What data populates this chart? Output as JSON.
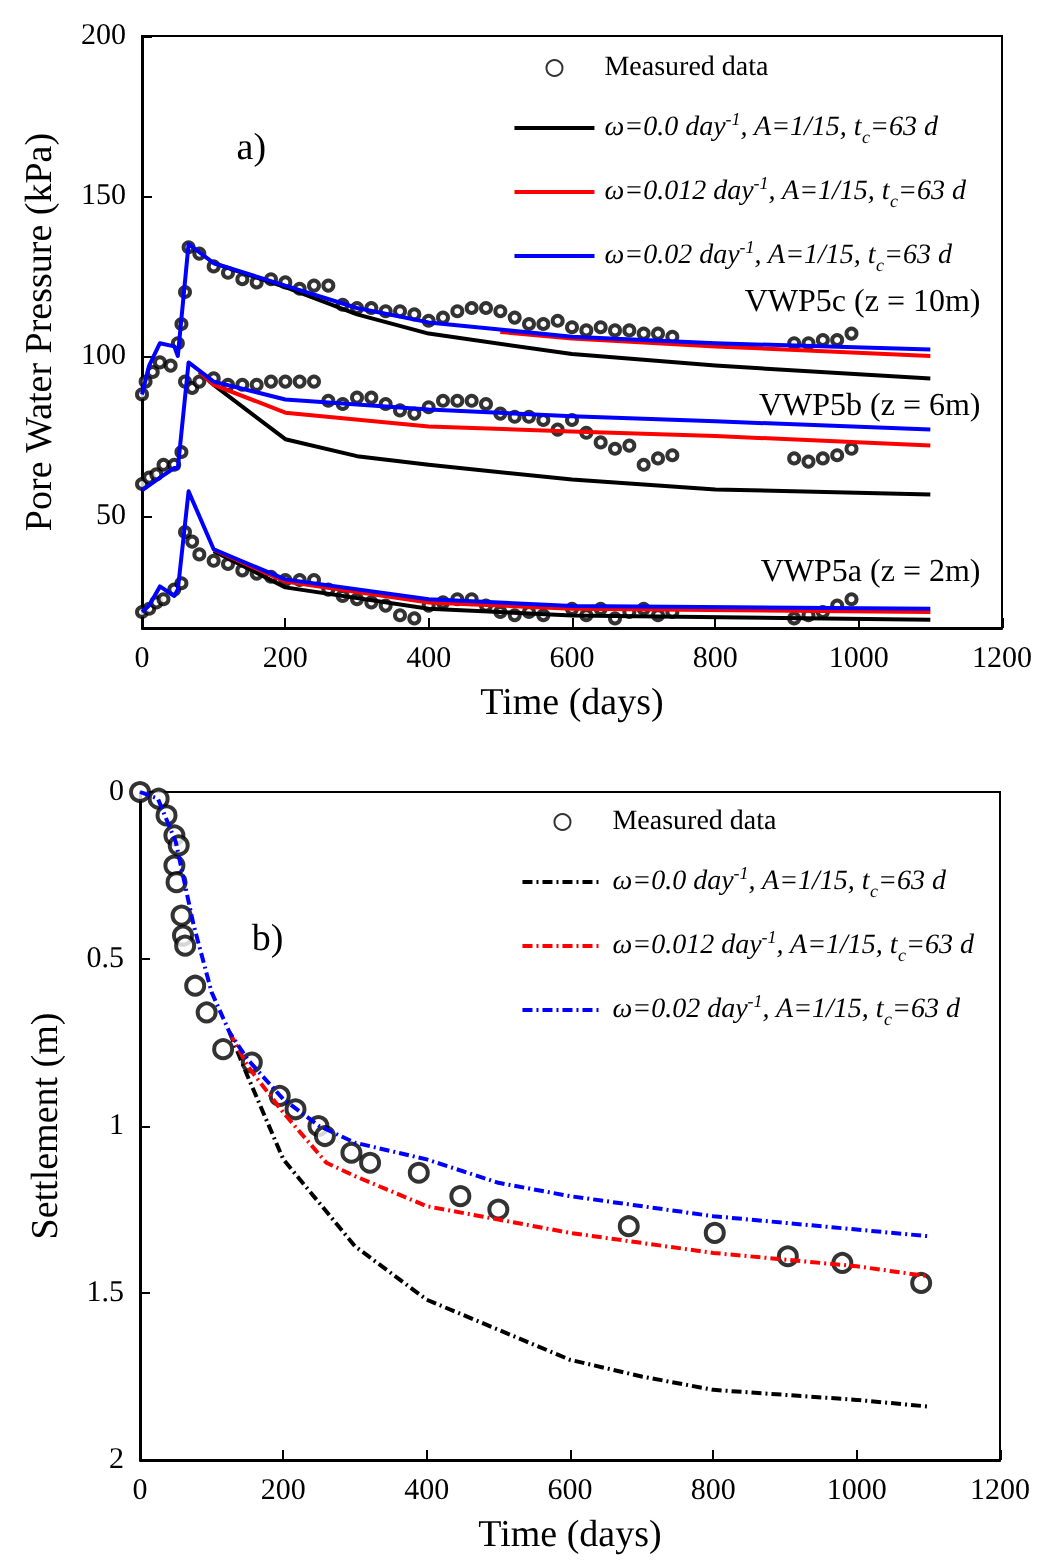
{
  "chart_data": [
    {
      "type": "line",
      "xlabel": "Time (days)",
      "ylabel": "Pore Water Pressure (kPa)",
      "xlim": [
        0,
        1200
      ],
      "xticks": [
        0,
        200,
        400,
        600,
        800,
        1000,
        1200
      ],
      "ylim": [
        15,
        200
      ],
      "yticks": [
        50,
        100,
        150,
        200
      ],
      "grid": false,
      "legend": "top right",
      "annotations": [
        "a)",
        "VWP5c (z = 10m)",
        "VWP5b (z = 6m)",
        "VWP5a (z = 2m)"
      ],
      "series": [
        {
          "name": "Measured data",
          "type": "scatter",
          "marker": "circle",
          "color": "#000000",
          "x": [
            0,
            5,
            15,
            25,
            40,
            50,
            55,
            60,
            65,
            80,
            100,
            120,
            140,
            160,
            180,
            200,
            220,
            240,
            260,
            280,
            300,
            320,
            340,
            360,
            380,
            400,
            420,
            440,
            460,
            480,
            500,
            520,
            540,
            560,
            580,
            600,
            620,
            640,
            660,
            680,
            700,
            720,
            740,
            910,
            930,
            950,
            970,
            990,
            0,
            10,
            20,
            30,
            45,
            55,
            60,
            70,
            80,
            100,
            120,
            140,
            160,
            180,
            200,
            220,
            240,
            260,
            280,
            300,
            320,
            340,
            360,
            380,
            400,
            420,
            440,
            460,
            480,
            500,
            520,
            540,
            560,
            580,
            600,
            620,
            640,
            660,
            680,
            700,
            720,
            740,
            910,
            930,
            950,
            970,
            990,
            0,
            10,
            20,
            30,
            45,
            55,
            60,
            70,
            80,
            100,
            120,
            140,
            160,
            180,
            200,
            220,
            240,
            260,
            280,
            300,
            320,
            340,
            360,
            380,
            400,
            420,
            440,
            460,
            480,
            500,
            520,
            540,
            560,
            600,
            620,
            640,
            660,
            680,
            700,
            720,
            740,
            910,
            930,
            950,
            970,
            990
          ],
          "values": [
            88,
            92,
            95,
            98,
            97,
            104,
            110,
            120,
            134,
            132,
            128,
            126,
            124,
            123,
            124,
            123,
            121,
            122,
            122,
            116,
            115,
            115,
            114,
            114,
            113,
            111,
            112,
            114,
            115,
            115,
            114,
            112,
            110,
            110,
            111,
            109,
            108,
            109,
            108,
            108,
            107,
            107,
            106,
            104,
            104,
            105,
            105,
            107,
            60,
            62,
            63,
            66,
            66,
            70,
            92,
            90,
            92,
            93,
            91,
            91,
            91,
            92,
            92,
            92,
            92,
            86,
            85,
            87,
            87,
            85,
            83,
            82,
            84,
            86,
            86,
            86,
            85,
            82,
            81,
            81,
            80,
            77,
            80,
            76,
            73,
            71,
            72,
            66,
            68,
            69,
            68,
            67,
            68,
            69,
            71,
            20,
            21,
            23,
            24,
            27,
            29,
            45,
            42,
            38,
            36,
            35,
            33,
            32,
            31,
            30,
            30,
            30,
            27,
            25,
            24,
            23,
            22,
            19,
            18,
            22,
            23,
            24,
            24,
            22,
            20,
            19,
            20,
            19,
            21,
            19,
            21,
            18,
            20,
            21,
            19,
            20,
            18,
            19,
            20,
            22,
            24
          ]
        },
        {
          "name": "ω=0.0 day$^{-1}$, A=1/15, t$_{c}$=63 d",
          "color": "#000000",
          "marker": "none",
          "x": [
            100,
            200,
            300,
            400,
            600,
            800,
            1100
          ],
          "values": [
            129,
            121.5,
            113,
            107,
            100.6,
            97,
            93
          ]
        },
        {
          "name": "ω=0.012 day$^{-1}$, A=1/15, t$_{c}$=63 d",
          "color": "#ff0000",
          "marker": "none",
          "x": [
            500,
            600,
            800,
            1100
          ],
          "values": [
            107.5,
            105.5,
            103,
            100
          ]
        },
        {
          "name": "ω=0.02 day$^{-1}$, A=1/15, t$_{c}$=63 d",
          "color": "#0000ff",
          "marker": "none",
          "x": [
            0,
            10,
            25,
            45,
            50,
            65,
            100,
            200,
            300,
            400,
            600,
            800,
            1100
          ],
          "values": [
            88,
            97,
            104,
            103,
            100,
            135,
            129,
            122,
            115,
            110.5,
            106,
            104,
            102
          ]
        },
        {
          "color": "#000000",
          "marker": "none",
          "x": [
            80,
            100,
            200,
            300,
            400,
            600,
            800,
            1100
          ],
          "values": [
            95,
            91,
            74,
            68.7,
            66,
            61.4,
            58.3,
            56.7
          ]
        },
        {
          "color": "#ff0000",
          "marker": "none",
          "x": [
            80,
            100,
            200,
            400,
            600,
            800,
            1100
          ],
          "values": [
            95,
            91,
            82.3,
            78,
            76.4,
            75,
            72
          ]
        },
        {
          "color": "#0000ff",
          "marker": "none",
          "x": [
            0,
            25,
            45,
            50,
            65,
            100,
            200,
            400,
            600,
            800,
            1100
          ],
          "values": [
            58,
            62,
            65,
            65,
            98,
            92,
            86.4,
            83.3,
            81.2,
            79.6,
            77
          ]
        },
        {
          "color": "#000000",
          "marker": "none",
          "x": [
            100,
            200,
            400,
            600,
            1100
          ],
          "values": [
            39,
            27.7,
            21,
            18.9,
            17.6
          ]
        },
        {
          "color": "#ff0000",
          "marker": "none",
          "x": [
            100,
            200,
            400,
            600,
            1100
          ],
          "values": [
            39.5,
            29.5,
            23,
            21,
            20
          ]
        },
        {
          "color": "#0000ff",
          "marker": "none",
          "x": [
            0,
            10,
            25,
            45,
            50,
            65,
            100,
            200,
            400,
            600,
            1100
          ],
          "values": [
            20,
            22,
            28,
            25,
            27,
            57.7,
            39.6,
            30.2,
            24,
            21.9,
            21
          ]
        }
      ]
    },
    {
      "type": "line",
      "xlabel": "Time (days)",
      "ylabel": "Settlement (m)",
      "xlim": [
        0,
        1200
      ],
      "xticks": [
        0,
        200,
        400,
        600,
        800,
        1000,
        1200
      ],
      "ylim": [
        2,
        0
      ],
      "yticks": [
        0,
        0.5,
        1,
        1.5,
        2
      ],
      "grid": false,
      "legend": "top right",
      "annotations": [
        "b)"
      ],
      "series": [
        {
          "name": "Measured data",
          "type": "scatter",
          "marker": "circle",
          "color": "#000000",
          "x": [
            0,
            26,
            37,
            48,
            54,
            48,
            51,
            58,
            60,
            63,
            77,
            93,
            116,
            156,
            195,
            217,
            249,
            258,
            295,
            321,
            389,
            447,
            500,
            682,
            802,
            904,
            980,
            1090
          ],
          "values": [
            0,
            0.02,
            0.07,
            0.13,
            0.16,
            0.22,
            0.27,
            0.37,
            0.43,
            0.46,
            0.58,
            0.66,
            0.77,
            0.81,
            0.91,
            0.95,
            1.0,
            1.03,
            1.08,
            1.11,
            1.14,
            1.21,
            1.25,
            1.3,
            1.32,
            1.39,
            1.41,
            1.47
          ]
        },
        {
          "name": "ω=0.0 day$^{-1}$, A=1/15, t$_{c}$=63 d",
          "color": "#000000",
          "marker": "none",
          "line_style": "dashed",
          "x": [
            125,
            150,
            200,
            300,
            400,
            500,
            600,
            700,
            800,
            1000,
            1100
          ],
          "values": [
            0.72,
            0.85,
            1.1,
            1.36,
            1.52,
            1.61,
            1.7,
            1.75,
            1.79,
            1.82,
            1.84
          ]
        },
        {
          "name": "ω=0.012 day$^{-1}$, A=1/15, t$_{c}$=63 d",
          "color": "#ff0000",
          "marker": "none",
          "line_style": "dashed",
          "x": [
            125,
            150,
            200,
            260,
            300,
            400,
            500,
            600,
            800,
            1000,
            1100
          ],
          "values": [
            0.72,
            0.82,
            0.96,
            1.11,
            1.15,
            1.24,
            1.28,
            1.32,
            1.38,
            1.42,
            1.45
          ]
        },
        {
          "name": "ω=0.02 day$^{-1}$, A=1/15, t$_{c}$=63 d",
          "color": "#0000ff",
          "marker": "none",
          "line_style": "dashed",
          "x": [
            0,
            25,
            50,
            75,
            100,
            125,
            150,
            200,
            250,
            300,
            400,
            500,
            600,
            800,
            1100
          ],
          "values": [
            0,
            0.02,
            0.15,
            0.4,
            0.6,
            0.72,
            0.8,
            0.92,
            1.0,
            1.05,
            1.1,
            1.17,
            1.21,
            1.27,
            1.33
          ]
        }
      ]
    }
  ]
}
